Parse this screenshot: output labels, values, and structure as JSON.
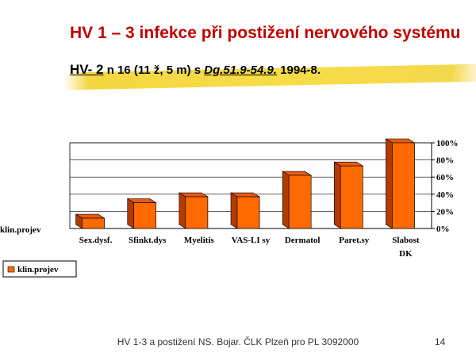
{
  "slide": {
    "title": "HV 1 – 3 infekce při  postižení nervového systému",
    "subtitle": {
      "hv": "HV- 2",
      "text": "  n 16 (11 ž, 5 m) s ",
      "dg": "Dg.51.9-54.9.",
      "years": " 1994-8."
    },
    "footer": "HV 1-3 a postižení NS. Bojar. ČLK Plzeň pro PL 3092000",
    "page_number": "14"
  },
  "chart_data": {
    "type": "bar",
    "categories": [
      "Sex.dysf.",
      "Sfinkt.dys",
      "Myelitis",
      "VAS-LI sy",
      "Dermatol",
      "Paret.sy",
      "Slabost DK"
    ],
    "series": [
      {
        "name": "klin.projev",
        "values": [
          0.12,
          0.3,
          0.37,
          0.37,
          0.62,
          0.73,
          1.0
        ]
      }
    ],
    "ylabel": "klin.projev",
    "ylim": [
      0,
      1
    ],
    "yticks": [
      0,
      0.2,
      0.4,
      0.6,
      0.8,
      1.0
    ],
    "ytick_labels": [
      "0%",
      "20%",
      "40%",
      "60%",
      "80%",
      "100%"
    ],
    "legend": [
      "klin.projev"
    ],
    "legend_position": "bottom-left",
    "grid": true,
    "colors": {
      "bar_front": "#ff6a00",
      "bar_side": "#b33a00",
      "bar_top": "#e85a10"
    }
  }
}
